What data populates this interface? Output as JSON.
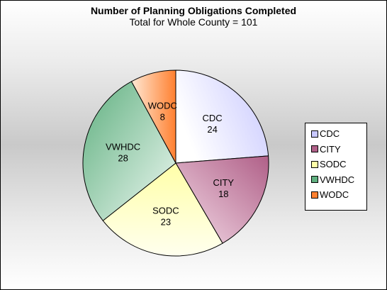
{
  "chart_data": {
    "type": "pie",
    "title": "Number of Planning Obligations Completed",
    "subtitle": "Total for Whole County = 101",
    "total": 101,
    "categories": [
      "CDC",
      "CITY",
      "SODC",
      "VWHDC",
      "WODC"
    ],
    "values": [
      24,
      18,
      23,
      28,
      8
    ],
    "colors": [
      "#c8c8ff",
      "#b06088",
      "#ffffa8",
      "#60b080",
      "#ff8030"
    ],
    "legend_position": "right"
  }
}
